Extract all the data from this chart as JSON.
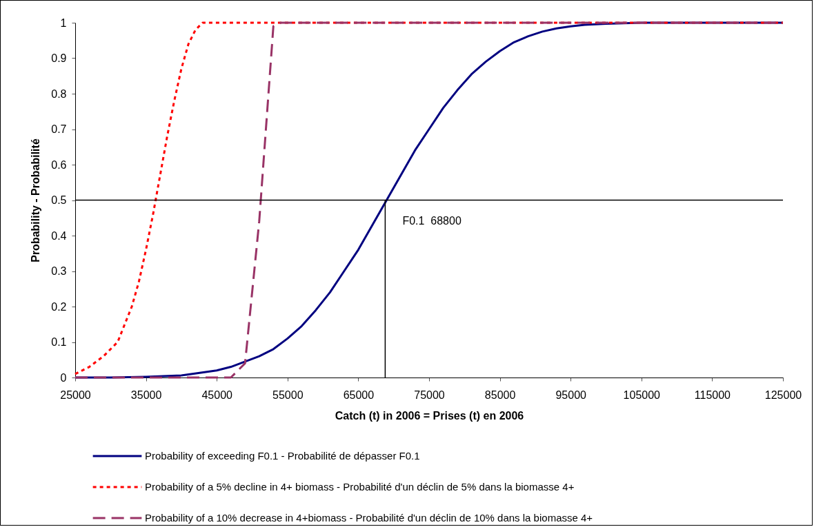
{
  "chart_data": {
    "type": "line",
    "xlabel": "Catch (t) in 2006 = Prises (t) en 2006",
    "ylabel": "Probability - Probabilité",
    "xlim": [
      25000,
      125000
    ],
    "xticks": [
      25000,
      35000,
      45000,
      55000,
      65000,
      75000,
      85000,
      95000,
      105000,
      115000,
      125000
    ],
    "ylim": [
      0,
      1
    ],
    "yticks": [
      0,
      0.1,
      0.2,
      0.3,
      0.4,
      0.5,
      0.6,
      0.7,
      0.8,
      0.9,
      1
    ],
    "grid": false,
    "legend": "bottom",
    "series": [
      {
        "name": "Probability of exceeding F0.1 - Probabilité de dépasser F0.1",
        "color": "#000080",
        "line_style": "solid",
        "x": [
          25000,
          30000,
          35000,
          40000,
          45000,
          47000,
          49000,
          51000,
          53000,
          55000,
          57000,
          59000,
          61000,
          63000,
          65000,
          67000,
          69000,
          71000,
          73000,
          75000,
          77000,
          79000,
          81000,
          83000,
          85000,
          87000,
          89000,
          91000,
          93000,
          95000,
          97000,
          100000,
          105000,
          125000
        ],
        "values": [
          0,
          0,
          0.002,
          0.006,
          0.02,
          0.03,
          0.045,
          0.06,
          0.08,
          0.11,
          0.145,
          0.19,
          0.24,
          0.3,
          0.36,
          0.43,
          0.5,
          0.57,
          0.64,
          0.7,
          0.76,
          0.81,
          0.855,
          0.89,
          0.92,
          0.945,
          0.962,
          0.975,
          0.984,
          0.99,
          0.994,
          0.997,
          1,
          1
        ]
      },
      {
        "name": "Probability of a 5% decline in 4+ biomass - Probabilité d'un déclin de 5% dans la biomasse 4+",
        "color": "#ff0000",
        "line_style": "dotted",
        "x": [
          25000,
          27000,
          29000,
          31000,
          33000,
          34000,
          35000,
          36000,
          37000,
          38000,
          39000,
          40000,
          41000,
          42000,
          43000,
          125000
        ],
        "values": [
          0.01,
          0.03,
          0.06,
          0.1,
          0.2,
          0.27,
          0.36,
          0.46,
          0.57,
          0.68,
          0.78,
          0.87,
          0.94,
          0.98,
          1,
          1
        ]
      },
      {
        "name": "Probability of a 10% decrease in 4+biomass - Probabilité d'un déclin de 10% dans la biomasse 4+",
        "color": "#993366",
        "line_style": "dashed",
        "x": [
          25000,
          47000,
          49000,
          51000,
          53000,
          54000,
          125000
        ],
        "values": [
          0,
          0,
          0.04,
          0.44,
          0.99,
          1,
          1
        ]
      }
    ],
    "ref_lines": [
      {
        "axis": "y",
        "value": 0.5,
        "label": null
      },
      {
        "axis": "x",
        "value": 68800,
        "label": "F0.1  68800"
      }
    ]
  }
}
